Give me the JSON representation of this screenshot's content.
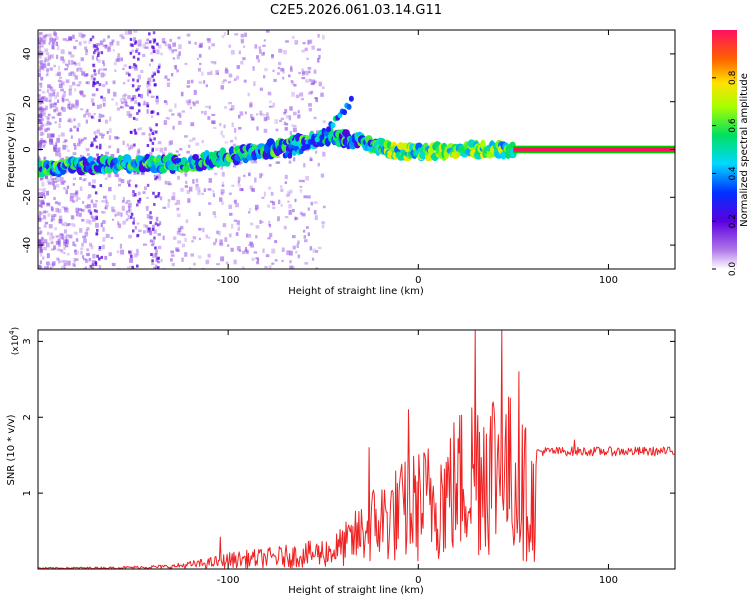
{
  "title": "C2E5.2026.061.03.14.G11",
  "colors": {
    "snr_line": "#ee2222",
    "frame": "#000000"
  },
  "chart_data": [
    {
      "type": "heatmap",
      "name": "spectrogram",
      "xlabel": "Height of straight line (km)",
      "ylabel": "Frequency (Hz)",
      "xlim": [
        -200,
        135
      ],
      "ylim": [
        -50,
        50
      ],
      "xticks": [
        -100,
        0,
        100
      ],
      "yticks": [
        -40,
        -20,
        0,
        20,
        40
      ],
      "xtick_labels": [
        "-100",
        "0",
        "100"
      ],
      "ytick_labels": [
        "-40",
        "-20",
        "0",
        "20",
        "40"
      ],
      "colorbar": {
        "label": "Normalized spectral amplitude",
        "range": [
          0,
          1
        ],
        "ticks": [
          0.0,
          0.2,
          0.4,
          0.6,
          0.8
        ],
        "tick_labels": [
          "0.0",
          "0.2",
          "0.4",
          "0.6",
          "0.8"
        ]
      },
      "ridge": [
        {
          "x": -200,
          "y": -8
        },
        {
          "x": -180,
          "y": -7
        },
        {
          "x": -160,
          "y": -6
        },
        {
          "x": -140,
          "y": -6
        },
        {
          "x": -120,
          "y": -6
        },
        {
          "x": -100,
          "y": -3
        },
        {
          "x": -80,
          "y": 0
        },
        {
          "x": -60,
          "y": 3
        },
        {
          "x": -45,
          "y": 6
        },
        {
          "x": -35,
          "y": 4
        },
        {
          "x": -20,
          "y": 1
        },
        {
          "x": -10,
          "y": -1
        },
        {
          "x": 0,
          "y": -1
        },
        {
          "x": 20,
          "y": 0
        },
        {
          "x": 40,
          "y": 0
        },
        {
          "x": 50,
          "y": 0
        },
        {
          "x": 135,
          "y": 0
        }
      ],
      "secondary_ridge": [
        {
          "x": -70,
          "y": -3
        },
        {
          "x": -60,
          "y": 0
        },
        {
          "x": -50,
          "y": 6
        },
        {
          "x": -40,
          "y": 16
        },
        {
          "x": -35,
          "y": 20
        }
      ],
      "saturated_band": {
        "x_start": 50,
        "x_end": 135,
        "y": 0,
        "amplitude": 1.0
      }
    },
    {
      "type": "line",
      "name": "snr",
      "xlabel": "Height of straight line (km)",
      "ylabel": "SNR (10 * v/v)",
      "scale_label": "(x10",
      "scale_exp": "4",
      "scale_close": ")",
      "xlim": [
        -200,
        135
      ],
      "ylim": [
        0,
        3.15
      ],
      "xticks": [
        -100,
        0,
        100
      ],
      "yticks": [
        1,
        2,
        3
      ],
      "xtick_labels": [
        "-100",
        "0",
        "100"
      ],
      "ytick_labels": [
        "1",
        "2",
        "3"
      ],
      "envelope": [
        {
          "x": -200,
          "y": 0.02
        },
        {
          "x": -160,
          "y": 0.03
        },
        {
          "x": -130,
          "y": 0.06
        },
        {
          "x": -110,
          "y": 0.15
        },
        {
          "x": -100,
          "y": 0.22
        },
        {
          "x": -80,
          "y": 0.28
        },
        {
          "x": -60,
          "y": 0.35
        },
        {
          "x": -45,
          "y": 0.45
        },
        {
          "x": -35,
          "y": 0.7
        },
        {
          "x": -25,
          "y": 1.1
        },
        {
          "x": -15,
          "y": 1.3
        },
        {
          "x": -5,
          "y": 1.5
        },
        {
          "x": 5,
          "y": 1.7
        },
        {
          "x": 15,
          "y": 1.9
        },
        {
          "x": 25,
          "y": 2.3
        },
        {
          "x": 35,
          "y": 2.7
        },
        {
          "x": 45,
          "y": 2.5
        },
        {
          "x": 55,
          "y": 2.0
        },
        {
          "x": 62,
          "y": 1.55
        },
        {
          "x": 135,
          "y": 1.55
        }
      ],
      "peaks": [
        {
          "x": -104,
          "y": 0.42
        },
        {
          "x": -26,
          "y": 1.6
        },
        {
          "x": -5,
          "y": 2.1
        },
        {
          "x": 30,
          "y": 3.15
        },
        {
          "x": 44,
          "y": 3.15
        },
        {
          "x": 53,
          "y": 2.6
        },
        {
          "x": 82,
          "y": 1.7
        }
      ],
      "plateau": {
        "x_start": 62,
        "x_end": 135,
        "y": 1.55
      }
    }
  ]
}
